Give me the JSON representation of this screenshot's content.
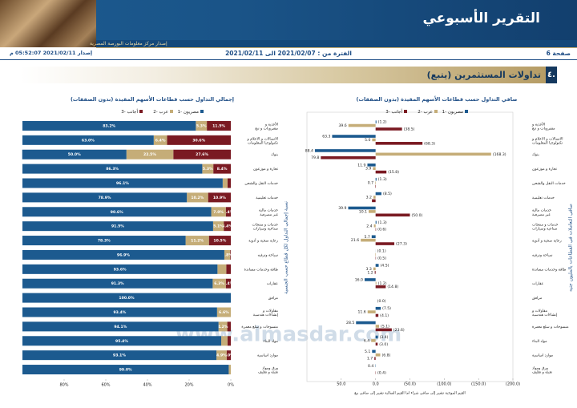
{
  "header": {
    "title": "التقرير الأسبوعي",
    "publisher": "إصدار مركز معلومات البورصة المصرية",
    "page": "صفحة 6",
    "period": "الفترة من : 2021/02/07 الى 2021/02/11",
    "issued": "إصدار 2021/02/11 05:52:07 م"
  },
  "section": {
    "number": "٤.",
    "title": "تداولات المستثمرين (يتبع)"
  },
  "watermark": "www.almasdar.com",
  "chart_data": [
    {
      "type": "stacked_bar",
      "orientation": "horizontal",
      "title": "إجمالي التداول حسب قطاعات الأسهم المقيدة (بدون الصفقات)",
      "ylabel": "نسبة إجمالي التداول لكل قطاع حسب الجنسية",
      "categories": [
        "الأغذية و مشروبات و تبغ",
        "الاتصالات و الاعلام و تكنولوجيا المعلومات",
        "بنوك",
        "تجارة و موزعون",
        "خدمات النقل والشحن",
        "خدمات تعليمية",
        "خدمات مالية غير مصرفية",
        "خدمات و منتجات صناعية وسيارات",
        "رعاية صحية و أدوية",
        "سياحة وترفيه",
        "طاقة وخدمات مساندة",
        "عقارات",
        "مرافق",
        "مقاولات و إنشاءات هندسية",
        "منسوجات و سلع معمرة",
        "مواد البناء",
        "موارد اساسية",
        "ورق ومواد تعبئة و تغليف"
      ],
      "series": [
        {
          "name": "مصريون -1",
          "color": "#1c5a8f",
          "values": [
            83.2,
            63.0,
            50.0,
            86.3,
            96.1,
            78.9,
            90.6,
            91.5,
            78.3,
            96.9,
            93.6,
            91.3,
            100.0,
            93.4,
            94.1,
            95.4,
            93.1,
            99.0
          ],
          "value_labels": [
            "83.2%",
            "63.0%",
            "50.0%",
            "86.3%",
            "96.1%",
            "78.9%",
            "90.6%",
            "91.5%",
            "78.3%",
            "96.9%",
            "93.6%",
            "91.3%",
            "100.0%",
            "93.4%",
            "94.1%",
            "95.4%",
            "93.1%",
            "99.0%"
          ]
        },
        {
          "name": "عرب -2",
          "color": "#c5ad78",
          "values": [
            5.3,
            6.4,
            22.5,
            5.3,
            2.3,
            10.2,
            7.0,
            5.1,
            11.2,
            2.8,
            4.2,
            6.3,
            0,
            6.6,
            4.2,
            3.0,
            4.9,
            1.0
          ],
          "value_labels": [
            "5.3%",
            "6.4%",
            "22.5%",
            "5.3%",
            null,
            "10.2%",
            "7.0%",
            "5.1%",
            "11.2%",
            "2.8%",
            null,
            "6.3%",
            null,
            "6.6%",
            "4.2%",
            null,
            "4.9%",
            null
          ]
        },
        {
          "name": "أجانب -3",
          "color": "#7a1a22",
          "values": [
            11.5,
            30.6,
            27.6,
            8.4,
            1.6,
            10.9,
            2.4,
            3.4,
            10.5,
            0.3,
            2.2,
            2.4,
            0,
            0,
            1.7,
            1.6,
            2.0,
            0
          ],
          "value_labels": [
            "11.5%",
            "30.6%",
            "27.6%",
            "8.4%",
            null,
            "10.9%",
            "2.4%",
            "3.4%",
            "10.5%",
            null,
            null,
            "2.4%",
            null,
            null,
            null,
            null,
            "2.0%",
            null
          ]
        }
      ],
      "xlim": [
        100,
        0
      ],
      "xticks": [
        {
          "value": 80,
          "label": "80%"
        },
        {
          "value": 60,
          "label": "60%"
        },
        {
          "value": 40,
          "label": "40%"
        },
        {
          "value": 20,
          "label": "20%"
        },
        {
          "value": 0,
          "label": "0%"
        }
      ],
      "grid": false
    },
    {
      "type": "grouped_bar",
      "orientation": "horizontal",
      "title": "صافي التداول حسب قطاعات الأسهم المقيدة (بدون الصفقات)",
      "ylabel": "صافي التعاملات في القطاعات بالمليون جنيه",
      "note": "القيم الموجبة تشير إلى صافي شراء اما القيم السالبة تشير إلى صافي بيع",
      "categories": [
        "الأغذية و مشروبات و تبغ",
        "الاتصالات و الاعلام و تكنولوجيا المعلومات",
        "بنوك",
        "تجارة و موزعون",
        "خدمات النقل والشحن",
        "خدمات تعليمية",
        "خدمات مالية غير مصرفية",
        "خدمات و منتجات صناعية وسيارات",
        "رعاية صحية و أدوية",
        "سياحة وترفيه",
        "طاقة وخدمات مساندة",
        "عقارات",
        "مرافق",
        "مقاولات و إنشاءات هندسية",
        "منسوجات و سلع معمرة",
        "مواد البناء",
        "موارد اساسية",
        "ورق ومواد تعبئة و تغليف"
      ],
      "series": [
        {
          "name": "مصريون -1",
          "color": "#1c5a8f",
          "values": [
            -1.2,
            63.3,
            88.4,
            11.9,
            -1.3,
            -8.5,
            39.9,
            -1.3,
            5.7,
            -0.1,
            -4.5,
            16.0,
            0.0,
            -7.5,
            28.5,
            -3.4,
            5.1,
            0.4
          ],
          "value_labels": [
            "(1.2)",
            "63.3",
            "88.4",
            "11.9",
            "(1.3)",
            "(8.5)",
            "39.9",
            "(1.3)",
            "5.7",
            "(0.1)",
            "(4.5)",
            "16.0",
            null,
            "(7.5)",
            "28.5",
            "(3.4)",
            "5.1",
            "0.4"
          ]
        },
        {
          "name": "عرب -2",
          "color": "#c5ad78",
          "values": [
            39.6,
            5.0,
            -168.3,
            3.9,
            0.7,
            3.2,
            10.1,
            2.4,
            21.6,
            0.6,
            3.3,
            -1.2,
            0.0,
            11.6,
            -5.1,
            6.4,
            -6.8,
            0.0
          ],
          "value_labels": [
            "39.6",
            "5.0",
            "(168.3)",
            "3.9",
            "0.7",
            "3.2",
            "10.1",
            "2.4",
            "21.6",
            null,
            "3.3",
            "(1.2)",
            null,
            "11.6",
            "(5.1)",
            "6.4",
            "(6.8)",
            null
          ]
        },
        {
          "name": "أجانب -3",
          "color": "#7a1a22",
          "values": [
            -38.5,
            -68.3,
            79.8,
            -15.8,
            0.6,
            5.3,
            -50.0,
            -0.6,
            -27.3,
            -0.5,
            1.2,
            -14.8,
            0.0,
            -4.1,
            -23.6,
            -3.0,
            1.7,
            -0.4
          ],
          "value_labels": [
            "(38.5)",
            "(68.3)",
            "79.8",
            "(15.8)",
            null,
            null,
            "(50.0)",
            "(0.6)",
            "(27.3)",
            "(0.5)",
            "1.2",
            "(14.8)",
            "(0.0)",
            "(4.1)",
            "(23.6)",
            "(3.0)",
            "1.7",
            "(0.4)"
          ]
        }
      ],
      "xlim": [
        100,
        -200
      ],
      "xticks": [
        {
          "value": 50,
          "label": "50.0"
        },
        {
          "value": 0,
          "label": "0.0"
        },
        {
          "value": -50,
          "label": "(50.0)"
        },
        {
          "value": -100,
          "label": "(100.0)"
        },
        {
          "value": -150,
          "label": "(150.0)"
        },
        {
          "value": -200,
          "label": "(200.0)"
        }
      ],
      "grid": false
    }
  ]
}
